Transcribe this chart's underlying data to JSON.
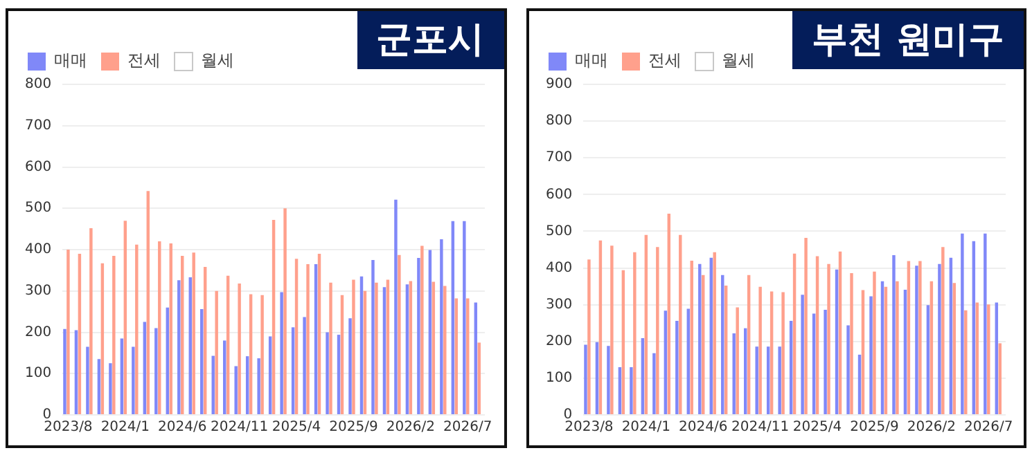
{
  "chart_data": [
    {
      "type": "bar",
      "title": "군포시",
      "legend": "top left",
      "grid": "y",
      "ylim": [
        0,
        800
      ],
      "yticks": [
        0,
        100,
        200,
        300,
        400,
        500,
        600,
        700,
        800
      ],
      "categories": [
        "2023/8",
        null,
        null,
        null,
        null,
        "2024/1",
        null,
        null,
        null,
        null,
        "2024/6",
        null,
        null,
        null,
        null,
        "2024/11",
        null,
        null,
        null,
        null,
        "2025/4",
        null,
        null,
        null,
        null,
        "2025/9",
        null,
        null,
        null,
        null,
        "2026/2",
        null,
        null,
        null,
        null,
        "2026/7",
        null
      ],
      "series": [
        {
          "name": "매매",
          "color": "#8088f8",
          "values": [
            208,
            205,
            165,
            135,
            125,
            185,
            165,
            225,
            210,
            260,
            326,
            333,
            256,
            143,
            180,
            118,
            142,
            137,
            190,
            297,
            212,
            237,
            365,
            200,
            194,
            234,
            335,
            375,
            309,
            521,
            316,
            380,
            399,
            425,
            469,
            469,
            272
          ]
        },
        {
          "name": "전세",
          "color": "#ffa08c",
          "values": [
            400,
            390,
            452,
            367,
            385,
            470,
            412,
            542,
            420,
            415,
            385,
            393,
            358,
            300,
            337,
            318,
            292,
            290,
            472,
            500,
            378,
            365,
            390,
            320,
            290,
            327,
            300,
            320,
            327,
            387,
            324,
            409,
            322,
            312,
            282,
            282,
            175
          ]
        },
        {
          "name": "월세",
          "color": "#ffffff",
          "values": [
            null,
            null,
            null,
            null,
            null,
            null,
            null,
            null,
            null,
            null,
            null,
            null,
            null,
            null,
            null,
            null,
            null,
            null,
            null,
            null,
            null,
            null,
            null,
            null,
            null,
            null,
            null,
            null,
            null,
            null,
            null,
            null,
            null,
            null,
            null,
            null,
            null
          ]
        }
      ]
    },
    {
      "type": "bar",
      "title": "부천 원미구",
      "legend": "top left",
      "grid": "y",
      "ylim": [
        0,
        900
      ],
      "yticks": [
        0,
        100,
        200,
        300,
        400,
        500,
        600,
        700,
        800,
        900
      ],
      "categories": [
        "2023/8",
        null,
        null,
        null,
        null,
        "2024/1",
        null,
        null,
        null,
        null,
        "2024/6",
        null,
        null,
        null,
        null,
        "2024/11",
        null,
        null,
        null,
        null,
        "2025/4",
        null,
        null,
        null,
        null,
        "2025/9",
        null,
        null,
        null,
        null,
        "2026/2",
        null,
        null,
        null,
        null,
        "2026/7",
        null
      ],
      "series": [
        {
          "name": "매매",
          "color": "#8088f8",
          "values": [
            191,
            198,
            188,
            130,
            130,
            209,
            168,
            284,
            256,
            289,
            411,
            428,
            381,
            222,
            236,
            186,
            186,
            186,
            256,
            327,
            276,
            286,
            396,
            244,
            164,
            323,
            364,
            435,
            341,
            406,
            299,
            411,
            428,
            494,
            473,
            494,
            306
          ]
        },
        {
          "name": "전세",
          "color": "#ffa08c",
          "values": [
            423,
            475,
            461,
            394,
            443,
            490,
            457,
            548,
            490,
            420,
            381,
            443,
            352,
            293,
            381,
            349,
            336,
            334,
            439,
            482,
            432,
            411,
            445,
            386,
            340,
            390,
            349,
            364,
            419,
            419,
            364,
            457,
            359,
            285,
            306,
            301,
            195
          ]
        },
        {
          "name": "월세",
          "color": "#ffffff",
          "values": [
            null,
            null,
            null,
            null,
            null,
            null,
            null,
            null,
            null,
            null,
            null,
            null,
            null,
            null,
            null,
            null,
            null,
            null,
            null,
            null,
            null,
            null,
            null,
            null,
            null,
            null,
            null,
            null,
            null,
            null,
            null,
            null,
            null,
            null,
            null,
            null,
            null
          ]
        }
      ]
    }
  ]
}
